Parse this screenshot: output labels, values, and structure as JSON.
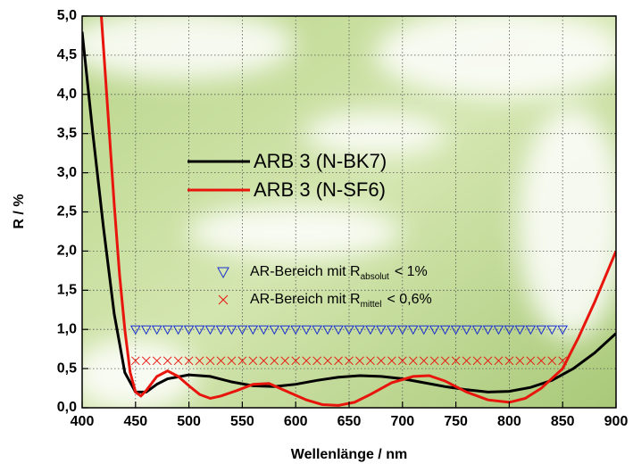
{
  "chart_data": {
    "type": "line",
    "x_label": "Wellenlänge / nm",
    "y_label": "R / %",
    "xlim": [
      400,
      900
    ],
    "xticks": [
      400,
      450,
      500,
      550,
      600,
      650,
      700,
      750,
      800,
      850,
      900
    ],
    "ylim": [
      0,
      5
    ],
    "yticks": [
      {
        "value": 0,
        "label": "0,0"
      },
      {
        "value": 0.5,
        "label": "0,5"
      },
      {
        "value": 1,
        "label": "1,0"
      },
      {
        "value": 1.5,
        "label": "1,5"
      },
      {
        "value": 2,
        "label": "2,0"
      },
      {
        "value": 2.5,
        "label": "2,5"
      },
      {
        "value": 3,
        "label": "3,0"
      },
      {
        "value": 3.5,
        "label": "3,5"
      },
      {
        "value": 4,
        "label": "4,0"
      },
      {
        "value": 4.5,
        "label": "4,5"
      },
      {
        "value": 5,
        "label": "5,0"
      }
    ],
    "grid": true,
    "series": [
      {
        "name": "ARB 3 (N-BK7)",
        "color": "#000000",
        "kind": "line",
        "x": [
          400,
          410,
          420,
          430,
          440,
          450,
          460,
          470,
          480,
          500,
          520,
          540,
          560,
          580,
          600,
          620,
          640,
          660,
          680,
          700,
          720,
          740,
          760,
          780,
          800,
          820,
          840,
          860,
          880,
          900
        ],
        "values": [
          4.8,
          3.5,
          2.3,
          1.2,
          0.45,
          0.2,
          0.2,
          0.3,
          0.37,
          0.42,
          0.4,
          0.33,
          0.28,
          0.27,
          0.3,
          0.35,
          0.39,
          0.41,
          0.4,
          0.37,
          0.32,
          0.27,
          0.23,
          0.2,
          0.21,
          0.26,
          0.35,
          0.5,
          0.7,
          0.95
        ]
      },
      {
        "name": "ARB 3 (N-SF6)",
        "color": "#e8150d",
        "kind": "line",
        "x": [
          418,
          425,
          430,
          435,
          440,
          445,
          450,
          455,
          460,
          470,
          480,
          490,
          500,
          510,
          520,
          530,
          545,
          560,
          575,
          590,
          610,
          625,
          640,
          655,
          670,
          690,
          710,
          725,
          740,
          760,
          780,
          800,
          815,
          830,
          850,
          865,
          880,
          900
        ],
        "values": [
          5.0,
          3.6,
          2.6,
          1.7,
          1.0,
          0.45,
          0.2,
          0.15,
          0.22,
          0.4,
          0.47,
          0.4,
          0.28,
          0.17,
          0.12,
          0.15,
          0.22,
          0.3,
          0.31,
          0.22,
          0.1,
          0.04,
          0.03,
          0.07,
          0.17,
          0.32,
          0.4,
          0.41,
          0.34,
          0.2,
          0.1,
          0.07,
          0.12,
          0.25,
          0.5,
          0.9,
          1.35,
          2.0
        ]
      },
      {
        "name": "AR-Bereich mit R",
        "name_sub": "absolut",
        "name_suffix": "< 1%",
        "color": "#1a2fd0",
        "kind": "triangle",
        "x": [
          450,
          460,
          470,
          480,
          490,
          500,
          510,
          520,
          530,
          540,
          550,
          560,
          570,
          580,
          590,
          600,
          610,
          620,
          630,
          640,
          650,
          660,
          670,
          680,
          690,
          700,
          710,
          720,
          730,
          740,
          750,
          760,
          770,
          780,
          790,
          800,
          810,
          820,
          830,
          840,
          850
        ],
        "values": [
          1,
          1,
          1,
          1,
          1,
          1,
          1,
          1,
          1,
          1,
          1,
          1,
          1,
          1,
          1,
          1,
          1,
          1,
          1,
          1,
          1,
          1,
          1,
          1,
          1,
          1,
          1,
          1,
          1,
          1,
          1,
          1,
          1,
          1,
          1,
          1,
          1,
          1,
          1,
          1,
          1
        ]
      },
      {
        "name": "AR-Bereich mit R",
        "name_sub": "mittel",
        "name_suffix": "< 0,6%",
        "color": "#e8150d",
        "kind": "cross",
        "x": [
          450,
          460,
          470,
          480,
          490,
          500,
          510,
          520,
          530,
          540,
          550,
          560,
          570,
          580,
          590,
          600,
          610,
          620,
          630,
          640,
          650,
          660,
          670,
          680,
          690,
          700,
          710,
          720,
          730,
          740,
          750,
          760,
          770,
          780,
          790,
          800,
          810,
          820,
          830,
          840,
          850
        ],
        "values": [
          0.6,
          0.6,
          0.6,
          0.6,
          0.6,
          0.6,
          0.6,
          0.6,
          0.6,
          0.6,
          0.6,
          0.6,
          0.6,
          0.6,
          0.6,
          0.6,
          0.6,
          0.6,
          0.6,
          0.6,
          0.6,
          0.6,
          0.6,
          0.6,
          0.6,
          0.6,
          0.6,
          0.6,
          0.6,
          0.6,
          0.6,
          0.6,
          0.6,
          0.6,
          0.6,
          0.6,
          0.6,
          0.6,
          0.6,
          0.6,
          0.6
        ]
      }
    ]
  }
}
